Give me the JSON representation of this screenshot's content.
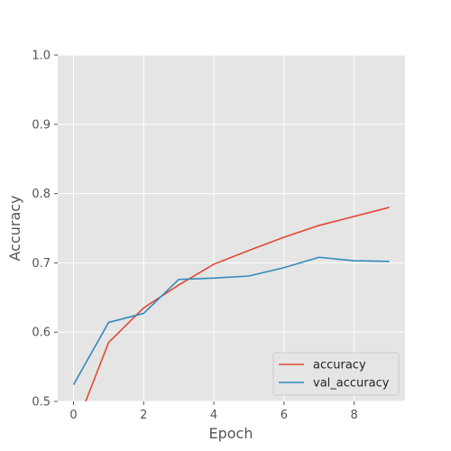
{
  "chart_data": {
    "type": "line",
    "title": "",
    "xlabel": "Epoch",
    "ylabel": "Accuracy",
    "xlim": [
      -0.45,
      9.45
    ],
    "ylim": [
      0.5,
      1.0
    ],
    "xticks": [
      0,
      2,
      4,
      6,
      8
    ],
    "yticks": [
      0.5,
      0.6,
      0.7,
      0.8,
      0.9,
      1.0
    ],
    "xtick_labels": [
      "0",
      "2",
      "4",
      "6",
      "8"
    ],
    "ytick_labels": [
      "0.5",
      "0.6",
      "0.7",
      "0.8",
      "0.9",
      "1.0"
    ],
    "grid": true,
    "background": "#e5e5e5",
    "legend_position": "lower-right",
    "x": [
      0,
      1,
      2,
      3,
      4,
      5,
      6,
      7,
      8,
      9
    ],
    "series": [
      {
        "name": "accuracy",
        "color": "#e24a33",
        "values": [
          0.455,
          0.585,
          0.635,
          0.668,
          0.698,
          0.718,
          0.737,
          0.754,
          0.767,
          0.78
        ]
      },
      {
        "name": "val_accuracy",
        "color": "#348abd",
        "values": [
          0.524,
          0.614,
          0.627,
          0.676,
          0.678,
          0.681,
          0.693,
          0.708,
          0.703,
          0.702
        ]
      }
    ]
  }
}
